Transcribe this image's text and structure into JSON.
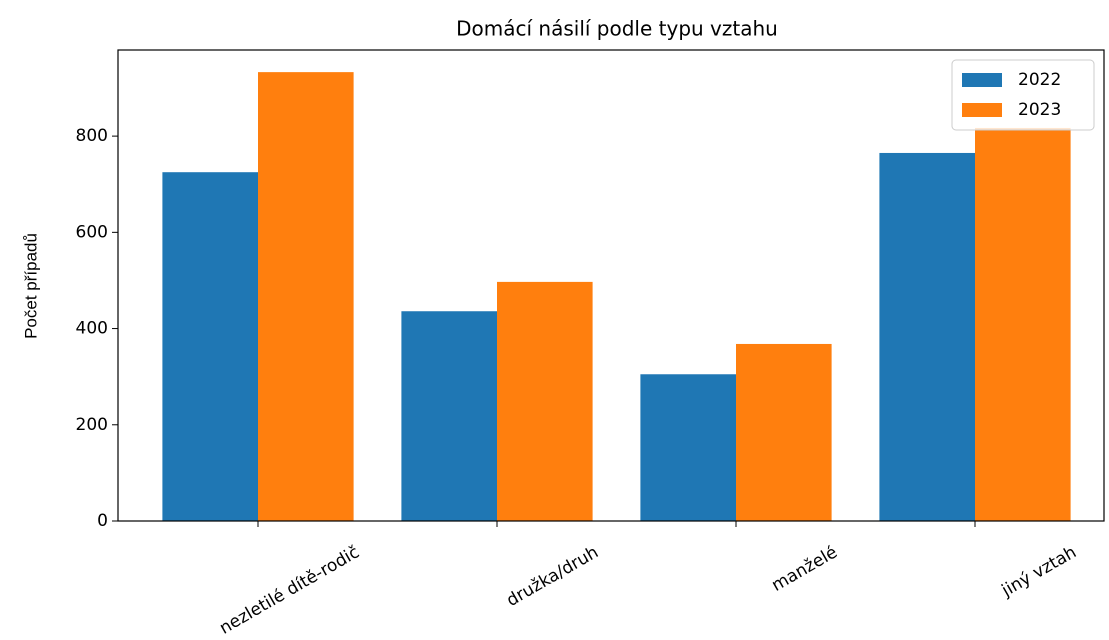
{
  "chart_data": {
    "type": "bar",
    "title": "Domácí násilí podle typu vztahu",
    "ylabel": "Počet případů",
    "categories": [
      "nezletilé dítě-rodič",
      "družka/druh",
      "manželé",
      "jiný vztah"
    ],
    "series": [
      {
        "name": "2022",
        "color": "#1f77b4",
        "values": [
          725,
          436,
          305,
          765
        ]
      },
      {
        "name": "2023",
        "color": "#ff7f0e",
        "values": [
          933,
          497,
          368,
          817
        ]
      }
    ],
    "ylim": [
      0,
      979
    ],
    "yticks": [
      0,
      200,
      400,
      600,
      800
    ],
    "legend": "upper right"
  }
}
